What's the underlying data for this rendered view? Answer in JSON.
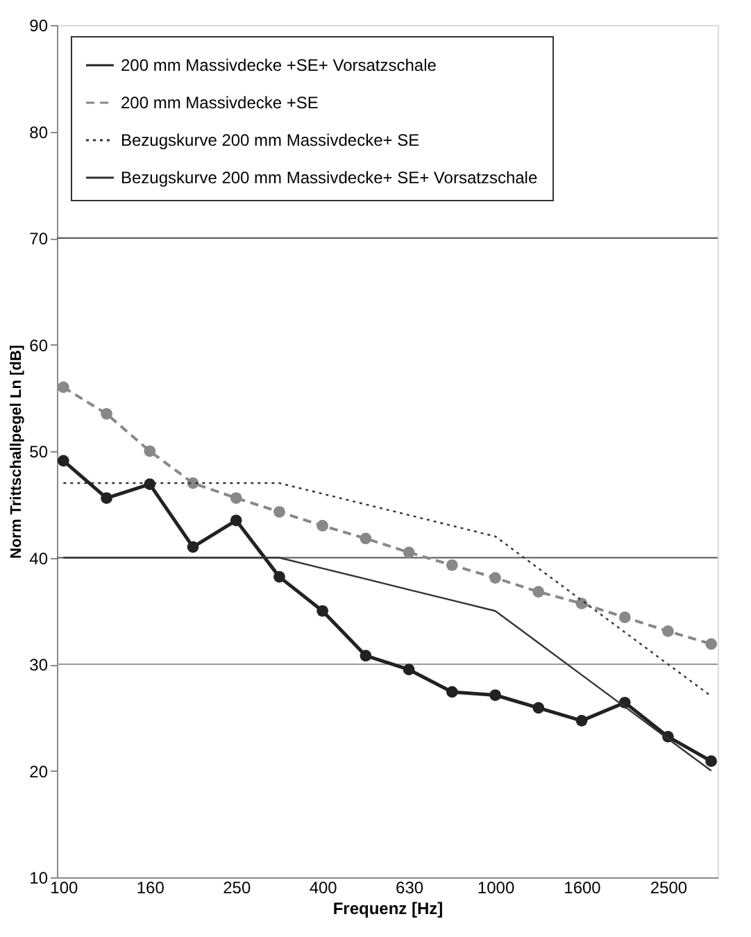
{
  "chart_data": {
    "type": "line",
    "xlabel": "Frequenz  [Hz]",
    "ylabel": "Norm Trittschallpegel Ln [dB]",
    "categories": [
      "100",
      null,
      "160",
      null,
      "250",
      null,
      "400",
      null,
      "630",
      null,
      "1000",
      null,
      "1600",
      null,
      "2500",
      null
    ],
    "series": [
      {
        "name": "200 mm Massivdecke +SE+ Vorsatzschale",
        "color": "#222222",
        "marker": "circle",
        "line_style": "solid",
        "values": [
          49.1,
          45.6,
          46.9,
          41.0,
          43.5,
          38.2,
          35.0,
          30.8,
          29.5,
          27.4,
          27.1,
          25.9,
          24.7,
          26.4,
          23.2,
          20.9
        ]
      },
      {
        "name": "200 mm Massivdecke +SE",
        "color": "#888888",
        "marker": "circle",
        "line_style": "dashed",
        "values": [
          56.0,
          53.5,
          50.0,
          47.0,
          45.6,
          44.3,
          43.0,
          41.8,
          40.5,
          39.3,
          38.1,
          36.8,
          35.7,
          34.4,
          33.1,
          31.9
        ]
      },
      {
        "name": "Bezugskurve 200 mm Massivdecke+ SE",
        "color": "#333333",
        "marker": "none",
        "line_style": "dotted",
        "values": [
          47,
          47,
          47,
          47,
          47,
          47,
          46,
          45,
          44,
          43,
          42,
          39,
          36,
          33,
          30,
          27
        ]
      },
      {
        "name": "Bezugskurve 200 mm Massivdecke+ SE+ Vorsatzschale",
        "color": "#333333",
        "marker": "none",
        "line_style": "solid",
        "values": [
          40,
          40,
          40,
          40,
          40,
          40,
          39,
          38,
          37,
          36,
          35,
          32,
          29,
          26,
          23,
          20
        ]
      }
    ],
    "ylim": [
      10,
      90
    ],
    "yticks": [
      10,
      20,
      30,
      40,
      50,
      60,
      70,
      80,
      90
    ],
    "grid": false,
    "legend": "top",
    "ref_lines": [
      {
        "axis": "y",
        "value": 30,
        "color": "#999999"
      },
      {
        "axis": "y",
        "value": 40,
        "color": "#555555"
      },
      {
        "axis": "y",
        "value": 70,
        "color": "#555555"
      }
    ]
  }
}
